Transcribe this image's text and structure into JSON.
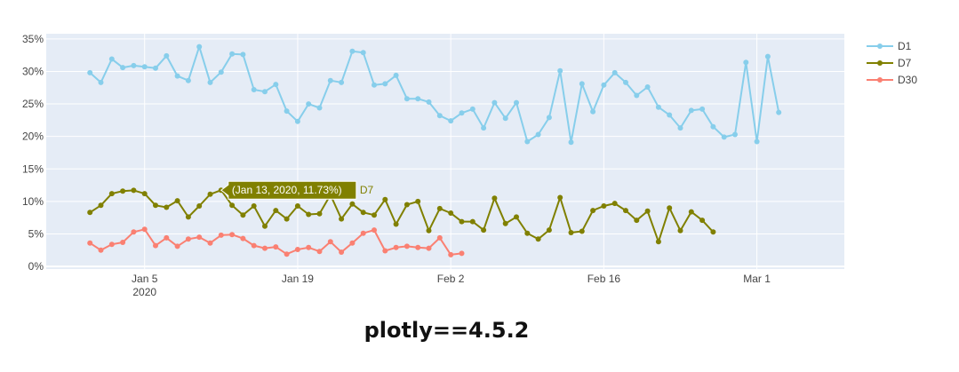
{
  "caption": "plotly==4.5.2",
  "colors": {
    "D1": "#87ceeb",
    "D7": "#808000",
    "D30": "#fa8072",
    "plot_bg": "#e5ecf6",
    "grid": "#ffffff"
  },
  "chart_data": {
    "type": "line",
    "title": "",
    "xlabel": "",
    "ylabel": "",
    "x_start": "2019-12-31",
    "x_tick_labels": [
      [
        "Jan 5",
        "2020"
      ],
      [
        "Jan 19"
      ],
      [
        "Feb 2"
      ],
      [
        "Feb 16"
      ],
      [
        "Mar 1"
      ]
    ],
    "x_tick_dates": [
      "2020-01-05",
      "2020-01-19",
      "2020-02-02",
      "2020-02-16",
      "2020-03-01"
    ],
    "xlim": [
      "2019-12-27",
      "2020-03-09"
    ],
    "y_ticks": [
      0,
      5,
      10,
      15,
      20,
      25,
      30,
      35
    ],
    "y_tick_labels": [
      "0%",
      "5%",
      "10%",
      "15%",
      "20%",
      "25%",
      "30%",
      "35%"
    ],
    "ylim": [
      -0.4,
      35.8
    ],
    "grid": true,
    "legend_position": "top-right",
    "series": [
      {
        "name": "D1",
        "color": "#87ceeb",
        "values": [
          29.8,
          28.3,
          31.9,
          30.6,
          30.9,
          30.7,
          30.5,
          32.4,
          29.3,
          28.6,
          33.8,
          28.3,
          29.9,
          32.7,
          32.6,
          27.2,
          26.9,
          28.0,
          23.9,
          22.3,
          25.0,
          24.4,
          28.6,
          28.3,
          33.1,
          32.9,
          27.9,
          28.1,
          29.4,
          25.8,
          25.8,
          25.3,
          23.2,
          22.4,
          23.6,
          24.2,
          21.3,
          25.2,
          22.8,
          25.2,
          19.2,
          20.3,
          22.9,
          30.1,
          19.1,
          28.1,
          23.8,
          27.9,
          29.8,
          28.3,
          26.3,
          27.6,
          24.5,
          23.3,
          21.3,
          24.0,
          24.2,
          21.5,
          19.9,
          20.3,
          31.4,
          19.2,
          32.3,
          23.7
        ]
      },
      {
        "name": "D7",
        "color": "#808000",
        "values": [
          8.3,
          9.4,
          11.2,
          11.6,
          11.7,
          11.2,
          9.4,
          9.1,
          10.1,
          7.6,
          9.3,
          11.1,
          11.73,
          9.4,
          7.9,
          9.3,
          6.2,
          8.6,
          7.3,
          9.3,
          8.0,
          8.1,
          11.0,
          7.3,
          9.6,
          8.3,
          7.9,
          10.3,
          6.5,
          9.5,
          10.0,
          5.5,
          8.9,
          8.2,
          6.9,
          6.9,
          5.6,
          10.5,
          6.6,
          7.6,
          5.1,
          4.2,
          5.6,
          10.6,
          5.2,
          5.4,
          8.6,
          9.3,
          9.7,
          8.6,
          7.1,
          8.5,
          3.8,
          9.0,
          5.5,
          8.4,
          7.1,
          5.3
        ]
      },
      {
        "name": "D30",
        "color": "#fa8072",
        "values": [
          3.6,
          2.5,
          3.4,
          3.7,
          5.3,
          5.7,
          3.2,
          4.4,
          3.1,
          4.2,
          4.5,
          3.6,
          4.8,
          4.9,
          4.3,
          3.2,
          2.8,
          3.0,
          1.9,
          2.6,
          2.9,
          2.3,
          3.8,
          2.2,
          3.6,
          5.1,
          5.6,
          2.4,
          2.9,
          3.1,
          2.9,
          2.8,
          4.4,
          1.8,
          2.0
        ]
      }
    ],
    "hover": {
      "series": "D7",
      "index": 12,
      "text": "(Jan 13, 2020, 11.73%)",
      "label": "D7"
    }
  }
}
